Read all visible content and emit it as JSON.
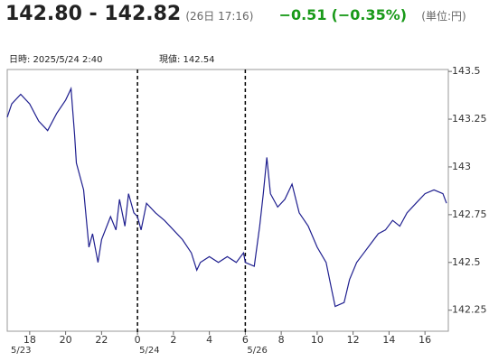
{
  "header": {
    "price": "142.80 - 142.82",
    "time": "(26日 17:16)",
    "change": "−0.51",
    "change_pct": "(−0.35%)",
    "unit": "(単位:円)"
  },
  "readout": {
    "datetime": "日時: 2025/5/24  2:40",
    "current": "現値: 142.54"
  },
  "chart_data": {
    "type": "line",
    "series": [
      {
        "color": "#1f1f8f",
        "x": [
          16.75,
          17,
          17.5,
          18,
          18.5,
          19,
          19.5,
          20,
          20.3,
          20.5,
          20.6,
          21,
          21.3,
          21.5,
          21.8,
          22,
          22.5,
          22.8,
          23,
          23.3,
          23.5,
          23.8,
          24,
          24.2,
          24.5,
          25,
          25.5,
          26,
          26.5,
          27,
          27.3,
          27.5,
          28,
          28.5,
          29,
          29.5,
          29.9,
          30,
          30.5,
          30.8,
          31,
          31.2,
          31.4,
          31.8,
          32.2,
          32.6,
          33,
          33.5,
          34,
          34.5,
          34.8,
          35,
          35.5,
          35.8,
          36.2,
          36.6,
          37,
          37.4,
          37.8,
          38.2,
          38.6,
          39,
          39.5,
          40,
          40.5,
          41,
          41.2
        ],
        "values": [
          143.26,
          143.33,
          143.38,
          143.33,
          143.24,
          143.19,
          143.28,
          143.35,
          143.41,
          143.17,
          143.02,
          142.88,
          142.58,
          142.65,
          142.5,
          142.62,
          142.74,
          142.67,
          142.83,
          142.69,
          142.86,
          142.76,
          142.74,
          142.67,
          142.81,
          142.76,
          142.72,
          142.67,
          142.62,
          142.55,
          142.46,
          142.5,
          142.53,
          142.5,
          142.53,
          142.5,
          142.55,
          142.5,
          142.48,
          142.69,
          142.86,
          143.05,
          142.86,
          142.79,
          142.83,
          142.91,
          142.76,
          142.69,
          142.58,
          142.5,
          142.36,
          142.27,
          142.29,
          142.41,
          142.5,
          142.55,
          142.6,
          142.65,
          142.67,
          142.72,
          142.69,
          142.76,
          142.81,
          142.86,
          142.88,
          142.86,
          142.81
        ]
      }
    ],
    "xlim": [
      16.75,
      41.3
    ],
    "xticks": [
      18,
      20,
      22,
      {
        "value": 24,
        "label": "0"
      },
      {
        "value": 26,
        "label": "2"
      },
      {
        "value": 28,
        "label": "4"
      },
      {
        "value": 30,
        "label": "6"
      },
      {
        "value": 32,
        "label": "8"
      },
      {
        "value": 34,
        "label": "10"
      },
      {
        "value": 36,
        "label": "12"
      },
      {
        "value": 38,
        "label": "14"
      },
      {
        "value": 40,
        "label": "16"
      }
    ],
    "ylim": [
      142.14,
      143.51
    ],
    "yticks": [
      143.5,
      143.25,
      143,
      142.75,
      142.5,
      142.25
    ],
    "date_labels": [
      {
        "x": 16.75,
        "label": "5/23"
      },
      {
        "x": 24,
        "label": "5/24"
      },
      {
        "x": 30,
        "label": "5/26"
      }
    ]
  }
}
